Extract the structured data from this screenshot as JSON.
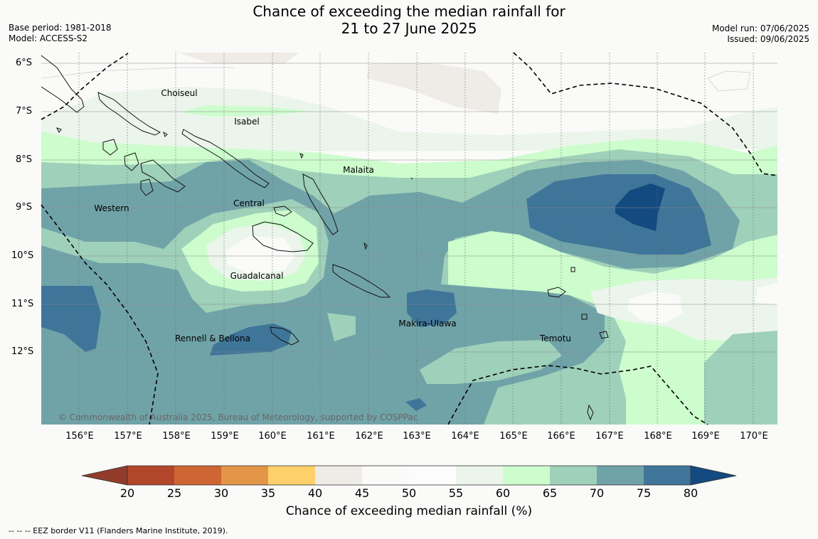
{
  "header": {
    "title_line1": "Chance of exceeding the median rainfall for",
    "title_line2": "21 to 27 June 2025",
    "base_period": "Base period: 1981-2018",
    "model": "Model: ACCESS-S2",
    "model_run": "Model run: 07/06/2025",
    "issued": "Issued: 09/06/2025"
  },
  "map": {
    "lat_labels": [
      "6°S",
      "7°S",
      "8°S",
      "9°S",
      "10°S",
      "11°S",
      "12°S"
    ],
    "lon_labels": [
      "156°E",
      "157°E",
      "158°E",
      "159°E",
      "160°E",
      "161°E",
      "162°E",
      "163°E",
      "164°E",
      "165°E",
      "166°E",
      "167°E",
      "168°E",
      "169°E",
      "170°E"
    ],
    "places": {
      "choiseul": "Choiseul",
      "isabel": "Isabel",
      "malaita": "Malaita",
      "western": "Western",
      "central": "Central",
      "guadalcanal": "Guadalcanal",
      "makira": "Makira-Ulawa",
      "rennell": "Rennell & Bellona",
      "temotu": "Temotu"
    },
    "copyright": "© Commonwealth of Australia 2025, Bureau of Meteorology, supported by COSPPac"
  },
  "colorbar": {
    "ticks": [
      "20",
      "25",
      "30",
      "35",
      "40",
      "45",
      "50",
      "55",
      "60",
      "65",
      "70",
      "75",
      "80"
    ],
    "colors": [
      "#b1462a",
      "#cf6533",
      "#e39548",
      "#fdd06a",
      "#efebe6",
      "#fafbf9",
      "#fbfcfb",
      "#ebf5eb",
      "#cdfccd",
      "#9fd0b9",
      "#70a3a8",
      "#3f7599"
    ],
    "under_color": "#923b2b",
    "over_color": "#134a7f",
    "label": "Chance of exceeding median rainfall (%)"
  },
  "footer": {
    "eez_note": "--  --  -- EEZ border V11 (Flanders Marine Institute, 2019)."
  }
}
